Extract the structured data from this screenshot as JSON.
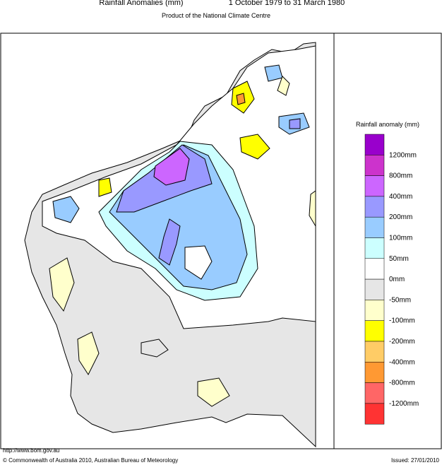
{
  "header": {
    "title": "Rainfall Anomalies (mm)",
    "period": "1 October 1979 to 31 March 1980",
    "subtitle": "Product of the National Climate Centre"
  },
  "legend": {
    "title": "Rainfall anomaly (mm)",
    "colors": [
      "#9900cc",
      "#cc33cc",
      "#cc66ff",
      "#9999ff",
      "#99ccff",
      "#ccffff",
      "#ffffff",
      "#e6e6e6",
      "#ffffcc",
      "#ffff00",
      "#ffcc66",
      "#ff9933",
      "#ff6666",
      "#ff3333"
    ],
    "labels": [
      "1200mm",
      "800mm",
      "400mm",
      "200mm",
      "100mm",
      "50mm",
      "0mm",
      "-50mm",
      "-100mm",
      "-200mm",
      "-400mm",
      "-800mm",
      "-1200mm"
    ]
  },
  "footer": {
    "url": "http://www.bom.gov.au",
    "copyright": "© Commonwealth of Australia 2010, Australian Bureau of Meteorology",
    "issued": "Issued: 27/01/2010"
  }
}
